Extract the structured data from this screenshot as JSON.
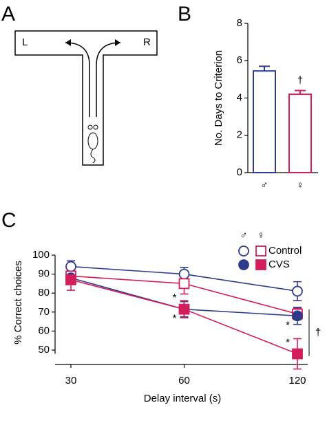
{
  "panel_a": {
    "label": "A",
    "left": "L",
    "right": "R"
  },
  "chart_data": [
    {
      "type": "bar",
      "panel_label": "B",
      "ylabel": "No. Days to Criterion",
      "categories": [
        "♂",
        "♀"
      ],
      "values": [
        5.45,
        4.2
      ],
      "errors": [
        0.25,
        0.2
      ],
      "colors": [
        "#2e3a8c",
        "#d41d5b"
      ],
      "annotation": "†",
      "ylim": [
        0,
        8
      ],
      "yticks": [
        0,
        2,
        4,
        6,
        8
      ]
    },
    {
      "type": "line",
      "panel_label": "C",
      "xlabel": "Delay interval (s)",
      "ylabel": "% Correct choices",
      "categories": [
        "30",
        "60",
        "120"
      ],
      "legend": {
        "header": [
          "♂",
          "♀"
        ],
        "rows": [
          "Control",
          "CVS"
        ]
      },
      "series": [
        {
          "color": "#2e3a8c",
          "marker": "circle",
          "filled": false,
          "values": [
            94,
            90,
            81
          ],
          "errors": [
            3,
            3.5,
            5
          ]
        },
        {
          "color": "#d41d5b",
          "marker": "square",
          "filled": false,
          "values": [
            89,
            85,
            69
          ],
          "errors": [
            3,
            5.5,
            3
          ]
        },
        {
          "color": "#2e3a8c",
          "marker": "circle",
          "filled": true,
          "values": [
            88,
            71.5,
            68
          ],
          "errors": [
            1,
            4,
            4.5
          ]
        },
        {
          "color": "#d41d5b",
          "marker": "square",
          "filled": true,
          "values": [
            87,
            71.5,
            48
          ],
          "errors": [
            5.5,
            4.5,
            8
          ]
        }
      ],
      "annotations": [
        {
          "text": "*",
          "series": 3,
          "index": 1
        },
        {
          "text": "*",
          "series": 2,
          "index": 1
        },
        {
          "text": "*",
          "series": 2,
          "index": 2
        },
        {
          "text": "*",
          "series": 3,
          "index": 2
        }
      ],
      "bracket": "†",
      "ylim": [
        48,
        100
      ],
      "yticks": [
        50,
        60,
        70,
        80,
        90,
        100
      ]
    }
  ]
}
